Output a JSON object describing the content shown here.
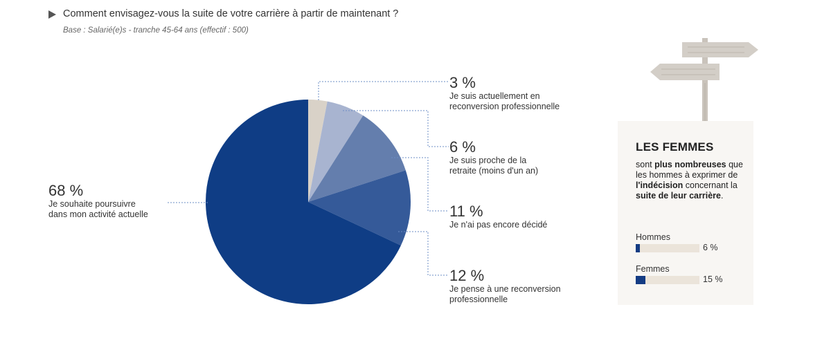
{
  "header": {
    "title": "Comment envisagez-vous la suite de votre carrière à partir de maintenant ?",
    "subtitle": "Base : Salarié(e)s - tranche 45-64 ans (effectif : 500)"
  },
  "chart_data": {
    "type": "pie",
    "start": "top",
    "direction": "clockwise",
    "slices": [
      {
        "label": "3 %",
        "description": "Je suis actuellement en reconversion professionnelle",
        "value": 3,
        "color": "#d9d2c8"
      },
      {
        "label": "6 %",
        "description": "Je suis proche de la retraite (moins d'un an)",
        "value": 6,
        "color": "#a8b4d0"
      },
      {
        "label": "11 %",
        "description": "Je n'ai pas encore décidé",
        "value": 11,
        "color": "#647ead"
      },
      {
        "label": "12 %",
        "description": "Je pense à une reconversion professionnelle",
        "value": 12,
        "color": "#355a99"
      },
      {
        "label": "68 %",
        "description": "Je souhaite poursuivre dans mon activité actuelle",
        "value": 68,
        "color": "#0f3d85"
      }
    ]
  },
  "labels": {
    "s0": {
      "pct": "3 %",
      "desc": "Je suis actuellement en\nreconversion professionnelle"
    },
    "s1": {
      "pct": "6 %",
      "desc": "Je suis proche de la\nretraite (moins d'un an)"
    },
    "s2": {
      "pct": "11 %",
      "desc": "Je n'ai pas encore décidé"
    },
    "s3": {
      "pct": "12 %",
      "desc": "Je pense à une reconversion\nprofessionnelle"
    },
    "s4": {
      "pct": "68 %",
      "desc": "Je souhaite poursuivre\ndans mon activité actuelle"
    }
  },
  "panel": {
    "title": "LES FEMMES",
    "t1": "sont ",
    "t2": "plus nombreuses",
    "t3": " que les hommes à exprimer de ",
    "t4": "l'indécision",
    "t5": " concernant la ",
    "t6": "suite de leur carrière",
    "t7": ".",
    "bars": [
      {
        "label": "Hommes",
        "value_text": "6 %",
        "value": 6
      },
      {
        "label": "Femmes",
        "value_text": "15 %",
        "value": 15
      }
    ],
    "bar_color": "#143c84",
    "track_color": "#ebe4da",
    "background": "#f8f6f3"
  },
  "colors": {
    "leader": "#6b8cc4",
    "wood": "#cfcac3"
  }
}
